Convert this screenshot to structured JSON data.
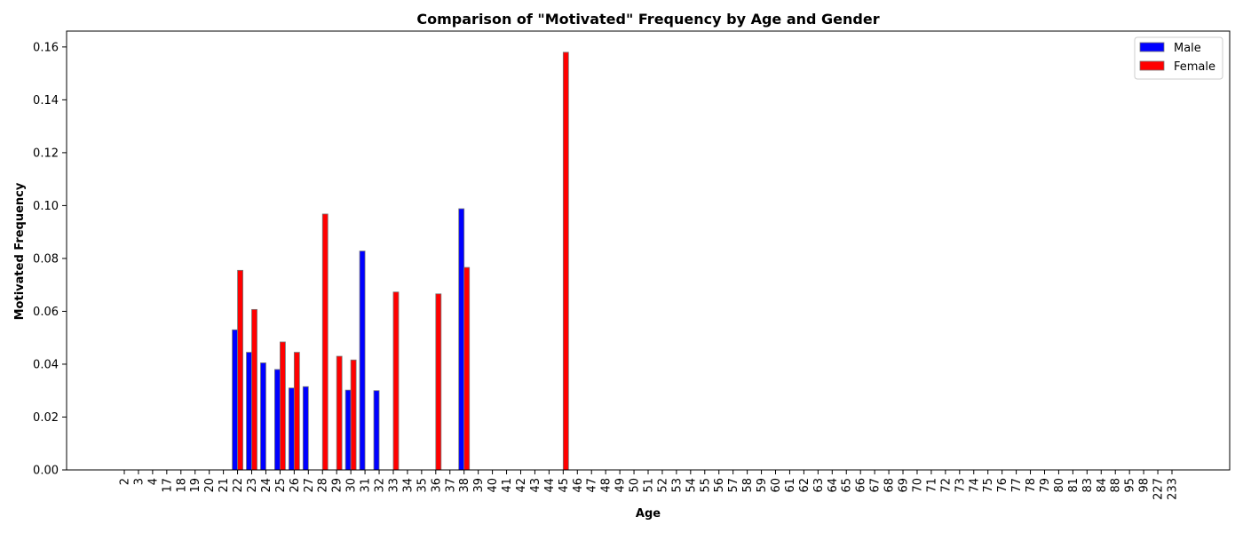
{
  "chart_data": {
    "type": "bar",
    "title": "Comparison of \"Motivated\" Frequency by Age and Gender",
    "xlabel": "Age",
    "ylabel": "Motivated Frequency",
    "ylim": [
      0,
      0.166
    ],
    "yticks": [
      0.0,
      0.02,
      0.04,
      0.06,
      0.08,
      0.1,
      0.12,
      0.14,
      0.16
    ],
    "ytick_labels": [
      "0.00",
      "0.02",
      "0.04",
      "0.06",
      "0.08",
      "0.10",
      "0.12",
      "0.14",
      "0.16"
    ],
    "grid": false,
    "legend_position": "top-right",
    "categories": [
      "2",
      "3",
      "4",
      "17",
      "18",
      "19",
      "20",
      "21",
      "22",
      "23",
      "24",
      "25",
      "26",
      "27",
      "28",
      "29",
      "30",
      "31",
      "32",
      "33",
      "34",
      "35",
      "36",
      "37",
      "38",
      "39",
      "40",
      "41",
      "42",
      "43",
      "44",
      "45",
      "46",
      "47",
      "48",
      "49",
      "50",
      "51",
      "52",
      "53",
      "54",
      "55",
      "56",
      "57",
      "58",
      "59",
      "60",
      "61",
      "62",
      "63",
      "64",
      "65",
      "66",
      "67",
      "68",
      "69",
      "70",
      "71",
      "72",
      "73",
      "74",
      "75",
      "76",
      "77",
      "78",
      "79",
      "80",
      "81",
      "83",
      "84",
      "88",
      "95",
      "98",
      "227",
      "233"
    ],
    "series": [
      {
        "name": "Male",
        "color": "#0000ff",
        "values": [
          0,
          0,
          0,
          0,
          0,
          0,
          0,
          0,
          0.053,
          0.0445,
          0.0405,
          0.038,
          0.031,
          0.0315,
          0,
          0,
          0.0302,
          0.0828,
          0.03,
          0,
          0,
          0,
          0,
          0,
          0.0988,
          0,
          0,
          0,
          0,
          0,
          0,
          0,
          0,
          0,
          0,
          0,
          0,
          0,
          0,
          0,
          0,
          0,
          0,
          0,
          0,
          0,
          0,
          0,
          0,
          0,
          0,
          0,
          0,
          0,
          0,
          0,
          0,
          0,
          0,
          0,
          0,
          0,
          0,
          0,
          0,
          0,
          0,
          0,
          0,
          0,
          0,
          0,
          0,
          0,
          0
        ]
      },
      {
        "name": "Female",
        "color": "#ff0000",
        "values": [
          0,
          0,
          0,
          0,
          0,
          0,
          0,
          0,
          0.0755,
          0.0607,
          0,
          0.0484,
          0.0445,
          0,
          0.0968,
          0.043,
          0.0416,
          0,
          0,
          0.0673,
          0,
          0,
          0.0666,
          0,
          0.0766,
          0,
          0,
          0,
          0,
          0,
          0,
          0.158,
          0,
          0,
          0,
          0,
          0,
          0,
          0,
          0,
          0,
          0,
          0,
          0,
          0,
          0,
          0,
          0,
          0,
          0,
          0,
          0,
          0,
          0,
          0,
          0,
          0,
          0,
          0,
          0,
          0,
          0,
          0,
          0,
          0,
          0,
          0,
          0,
          0,
          0,
          0,
          0,
          0,
          0,
          0
        ]
      }
    ]
  }
}
